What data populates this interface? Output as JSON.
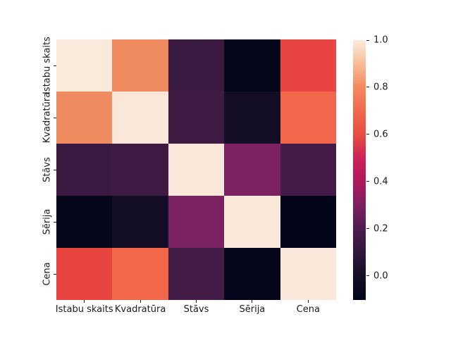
{
  "figure": {
    "background": "#ffffff",
    "title": ""
  },
  "chart_data": {
    "type": "heatmap",
    "title": "",
    "xlabel": "",
    "ylabel": "",
    "categories": [
      "Istabu skaits",
      "Kvadratūra",
      "Stāvs",
      "Sērija",
      "Cena"
    ],
    "matrix": [
      [
        1.0,
        0.78,
        0.12,
        -0.08,
        0.58
      ],
      [
        0.78,
        1.0,
        0.14,
        0.0,
        0.7
      ],
      [
        0.12,
        0.14,
        1.0,
        0.28,
        0.15
      ],
      [
        -0.08,
        0.0,
        0.28,
        1.0,
        -0.1
      ],
      [
        0.58,
        0.7,
        0.15,
        -0.1,
        1.0
      ]
    ],
    "cell_colors": [
      [
        "#faeadc",
        "#f08a5f",
        "#3a1a40",
        "#050619",
        "#e84444"
      ],
      [
        "#f08a5f",
        "#fae7d9",
        "#3f1b44",
        "#140d26",
        "#f2674b"
      ],
      [
        "#3a1a40",
        "#3f1b44",
        "#fae7d9",
        "#7c2262",
        "#451c47"
      ],
      [
        "#050619",
        "#130e25",
        "#7c2262",
        "#fae8da",
        "#04051a"
      ],
      [
        "#e84440",
        "#f2664a",
        "#421c47",
        "#05051c",
        "#fae8db"
      ]
    ],
    "colormap": "rocket",
    "grid": false,
    "legend": false,
    "colorbar": {
      "position": "right",
      "vmin": -0.103,
      "vmax": 1.0,
      "tick_labels": [
        "1.0",
        "0.8",
        "0.6",
        "0.4",
        "0.2",
        "0.0"
      ],
      "tick_values": [
        1.0,
        0.8,
        0.6,
        0.4,
        0.2,
        0.0
      ],
      "gradient_stops": [
        {
          "frac": 0.0,
          "color": "#03051a"
        },
        {
          "frac": 0.093,
          "color": "#150e27"
        },
        {
          "frac": 0.184,
          "color": "#32173c"
        },
        {
          "frac": 0.274,
          "color": "#4e1c50"
        },
        {
          "frac": 0.365,
          "color": "#7c2062"
        },
        {
          "frac": 0.456,
          "color": "#b0175b"
        },
        {
          "frac": 0.547,
          "color": "#cc2258"
        },
        {
          "frac": 0.637,
          "color": "#e84d42"
        },
        {
          "frac": 0.728,
          "color": "#f0684c"
        },
        {
          "frac": 0.818,
          "color": "#f5895e"
        },
        {
          "frac": 0.909,
          "color": "#f8bd98"
        },
        {
          "frac": 1.0,
          "color": "#faebdd"
        }
      ]
    },
    "tick_color": "#1a1a1a"
  }
}
